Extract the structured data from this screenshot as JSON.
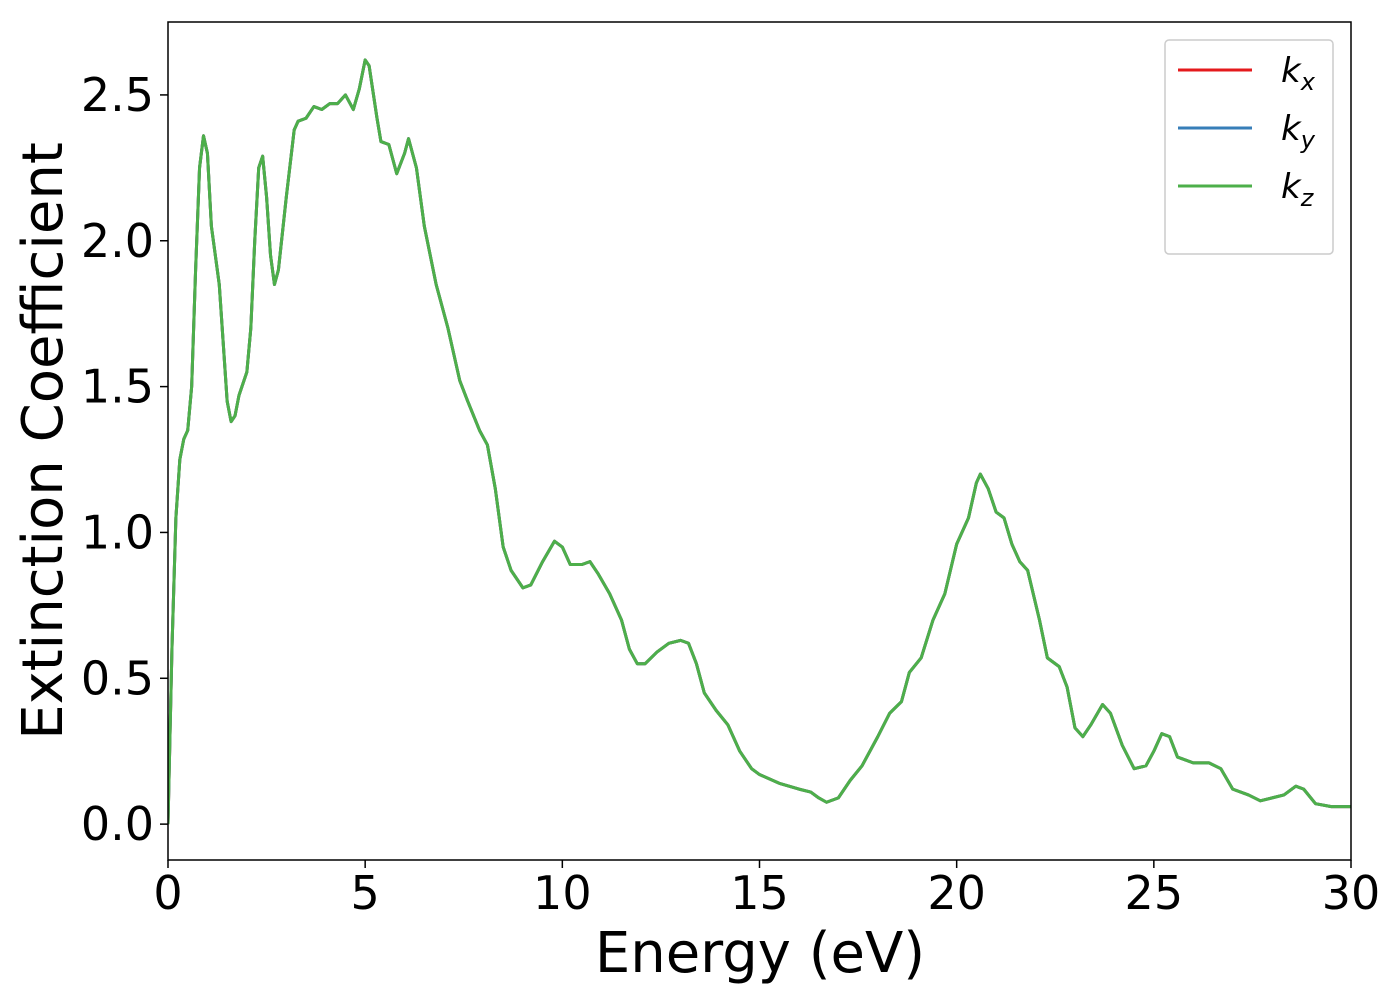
{
  "chart_data": {
    "type": "line",
    "xlabel": "Energy (eV)",
    "ylabel": "Extinction Coefficient",
    "xlim": [
      0,
      30
    ],
    "ylim": [
      -0.123,
      2.75
    ],
    "xticks": [
      0,
      5,
      10,
      15,
      20,
      25,
      30
    ],
    "yticks": [
      {
        "value": 0,
        "label": "0.0"
      },
      0.5,
      {
        "value": 1,
        "label": "1.0"
      },
      1.5,
      {
        "value": 2,
        "label": "2.0"
      },
      2.5
    ],
    "legend": "upper right",
    "grid": false,
    "x": [
      0,
      0.1,
      0.2,
      0.3,
      0.4,
      0.5,
      0.6,
      0.7,
      0.8,
      0.9,
      1.0,
      1.1,
      1.2,
      1.3,
      1.4,
      1.5,
      1.6,
      1.7,
      1.8,
      2.0,
      2.1,
      2.2,
      2.3,
      2.4,
      2.5,
      2.6,
      2.7,
      2.8,
      3.0,
      3.2,
      3.3,
      3.5,
      3.7,
      3.9,
      4.1,
      4.3,
      4.5,
      4.7,
      4.85,
      5.0,
      5.1,
      5.3,
      5.4,
      5.6,
      5.8,
      6.0,
      6.1,
      6.3,
      6.5,
      6.8,
      7.1,
      7.4,
      7.6,
      7.9,
      8.1,
      8.3,
      8.5,
      8.7,
      9.0,
      9.2,
      9.5,
      9.8,
      10.0,
      10.2,
      10.5,
      10.7,
      10.9,
      11.2,
      11.5,
      11.7,
      11.9,
      12.1,
      12.4,
      12.7,
      13.0,
      13.2,
      13.4,
      13.6,
      13.9,
      14.2,
      14.5,
      14.8,
      15.0,
      15.5,
      16.0,
      16.3,
      16.5,
      16.7,
      17.0,
      17.3,
      17.6,
      18.0,
      18.3,
      18.6,
      18.8,
      19.1,
      19.4,
      19.7,
      20.0,
      20.3,
      20.5,
      20.6,
      20.8,
      21.0,
      21.2,
      21.4,
      21.6,
      21.8,
      22.1,
      22.3,
      22.6,
      22.8,
      23.0,
      23.2,
      23.4,
      23.7,
      23.9,
      24.2,
      24.5,
      24.8,
      25.0,
      25.2,
      25.4,
      25.6,
      26.0,
      26.4,
      26.7,
      27.0,
      27.4,
      27.7,
      28.0,
      28.3,
      28.6,
      28.8,
      29.1,
      29.5,
      30.0
    ],
    "series": [
      {
        "name": "kx",
        "color": "#e41a1c",
        "values": [
          0,
          0.6,
          1.05,
          1.25,
          1.32,
          1.35,
          1.5,
          1.9,
          2.25,
          2.36,
          2.3,
          2.05,
          1.95,
          1.85,
          1.65,
          1.45,
          1.38,
          1.4,
          1.47,
          1.55,
          1.7,
          2.0,
          2.25,
          2.29,
          2.15,
          1.95,
          1.85,
          1.9,
          2.15,
          2.38,
          2.41,
          2.42,
          2.46,
          2.45,
          2.47,
          2.47,
          2.5,
          2.45,
          2.52,
          2.62,
          2.6,
          2.42,
          2.34,
          2.33,
          2.23,
          2.3,
          2.35,
          2.25,
          2.05,
          1.85,
          1.7,
          1.52,
          1.45,
          1.35,
          1.3,
          1.15,
          0.95,
          0.87,
          0.81,
          0.82,
          0.9,
          0.97,
          0.95,
          0.89,
          0.89,
          0.9,
          0.86,
          0.79,
          0.7,
          0.6,
          0.55,
          0.55,
          0.59,
          0.62,
          0.63,
          0.62,
          0.55,
          0.45,
          0.39,
          0.34,
          0.25,
          0.19,
          0.17,
          0.14,
          0.12,
          0.11,
          0.09,
          0.075,
          0.09,
          0.15,
          0.2,
          0.3,
          0.38,
          0.42,
          0.52,
          0.57,
          0.7,
          0.79,
          0.96,
          1.05,
          1.17,
          1.2,
          1.15,
          1.07,
          1.05,
          0.96,
          0.9,
          0.87,
          0.7,
          0.57,
          0.54,
          0.47,
          0.33,
          0.3,
          0.34,
          0.41,
          0.38,
          0.27,
          0.19,
          0.2,
          0.25,
          0.31,
          0.3,
          0.23,
          0.21,
          0.21,
          0.19,
          0.12,
          0.1,
          0.08,
          0.09,
          0.1,
          0.13,
          0.12,
          0.07,
          0.06,
          0.06
        ]
      },
      {
        "name": "ky",
        "color": "#377eb8",
        "values": [
          0,
          0.6,
          1.05,
          1.25,
          1.32,
          1.35,
          1.5,
          1.9,
          2.25,
          2.36,
          2.3,
          2.05,
          1.95,
          1.85,
          1.65,
          1.45,
          1.38,
          1.4,
          1.47,
          1.55,
          1.7,
          2.0,
          2.25,
          2.29,
          2.15,
          1.95,
          1.85,
          1.9,
          2.15,
          2.38,
          2.41,
          2.42,
          2.46,
          2.45,
          2.47,
          2.47,
          2.5,
          2.45,
          2.52,
          2.62,
          2.6,
          2.42,
          2.34,
          2.33,
          2.23,
          2.3,
          2.35,
          2.25,
          2.05,
          1.85,
          1.7,
          1.52,
          1.45,
          1.35,
          1.3,
          1.15,
          0.95,
          0.87,
          0.81,
          0.82,
          0.9,
          0.97,
          0.95,
          0.89,
          0.89,
          0.9,
          0.86,
          0.79,
          0.7,
          0.6,
          0.55,
          0.55,
          0.59,
          0.62,
          0.63,
          0.62,
          0.55,
          0.45,
          0.39,
          0.34,
          0.25,
          0.19,
          0.17,
          0.14,
          0.12,
          0.11,
          0.09,
          0.075,
          0.09,
          0.15,
          0.2,
          0.3,
          0.38,
          0.42,
          0.52,
          0.57,
          0.7,
          0.79,
          0.96,
          1.05,
          1.17,
          1.2,
          1.15,
          1.07,
          1.05,
          0.96,
          0.9,
          0.87,
          0.7,
          0.57,
          0.54,
          0.47,
          0.33,
          0.3,
          0.34,
          0.41,
          0.38,
          0.27,
          0.19,
          0.2,
          0.25,
          0.31,
          0.3,
          0.23,
          0.21,
          0.21,
          0.19,
          0.12,
          0.1,
          0.08,
          0.09,
          0.1,
          0.13,
          0.12,
          0.07,
          0.06,
          0.06
        ]
      },
      {
        "name": "kz",
        "color": "#4daf4a",
        "values": [
          0,
          0.6,
          1.05,
          1.25,
          1.32,
          1.35,
          1.5,
          1.9,
          2.25,
          2.36,
          2.3,
          2.05,
          1.95,
          1.85,
          1.65,
          1.45,
          1.38,
          1.4,
          1.47,
          1.55,
          1.7,
          2.0,
          2.25,
          2.29,
          2.15,
          1.95,
          1.85,
          1.9,
          2.15,
          2.38,
          2.41,
          2.42,
          2.46,
          2.45,
          2.47,
          2.47,
          2.5,
          2.45,
          2.52,
          2.62,
          2.6,
          2.42,
          2.34,
          2.33,
          2.23,
          2.3,
          2.35,
          2.25,
          2.05,
          1.85,
          1.7,
          1.52,
          1.45,
          1.35,
          1.3,
          1.15,
          0.95,
          0.87,
          0.81,
          0.82,
          0.9,
          0.97,
          0.95,
          0.89,
          0.89,
          0.9,
          0.86,
          0.79,
          0.7,
          0.6,
          0.55,
          0.55,
          0.59,
          0.62,
          0.63,
          0.62,
          0.55,
          0.45,
          0.39,
          0.34,
          0.25,
          0.19,
          0.17,
          0.14,
          0.12,
          0.11,
          0.09,
          0.075,
          0.09,
          0.15,
          0.2,
          0.3,
          0.38,
          0.42,
          0.52,
          0.57,
          0.7,
          0.79,
          0.96,
          1.05,
          1.17,
          1.2,
          1.15,
          1.07,
          1.05,
          0.96,
          0.9,
          0.87,
          0.7,
          0.57,
          0.54,
          0.47,
          0.33,
          0.3,
          0.34,
          0.41,
          0.38,
          0.27,
          0.19,
          0.2,
          0.25,
          0.31,
          0.3,
          0.23,
          0.21,
          0.21,
          0.19,
          0.12,
          0.1,
          0.08,
          0.09,
          0.1,
          0.13,
          0.12,
          0.07,
          0.06,
          0.06
        ]
      }
    ]
  }
}
